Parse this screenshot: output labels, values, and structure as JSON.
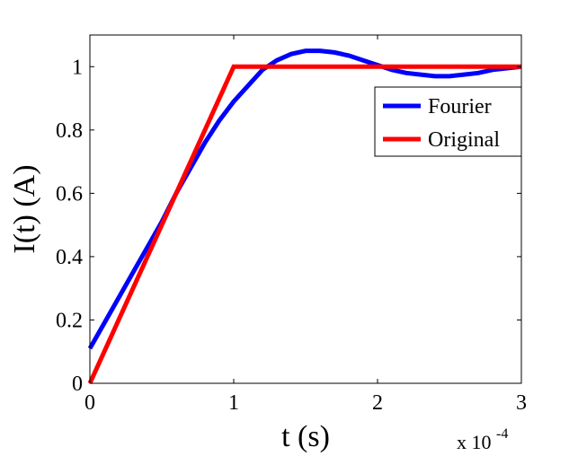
{
  "chart_data": {
    "type": "line",
    "xlabel": "t (s)",
    "ylabel": "I(t) (A)",
    "x_multiplier_label": "x 10",
    "x_multiplier_exponent": "-4",
    "xlim": [
      0,
      3
    ],
    "ylim": [
      0,
      1.1
    ],
    "x_ticks": [
      0,
      1,
      2,
      3
    ],
    "y_ticks": [
      0,
      0.2,
      0.4,
      0.6,
      0.8,
      1
    ],
    "y_tick_labels": [
      "0",
      "0.2",
      "0.4",
      "0.6",
      "0.8",
      "1"
    ],
    "x_tick_labels": [
      "0",
      "1",
      "2",
      "3"
    ],
    "grid": false,
    "legend_position": "top-right",
    "series": [
      {
        "name": "Fourier",
        "color": "#0000ff",
        "x": [
          0,
          0.1,
          0.2,
          0.3,
          0.4,
          0.5,
          0.6,
          0.7,
          0.8,
          0.9,
          1.0,
          1.1,
          1.2,
          1.3,
          1.4,
          1.5,
          1.6,
          1.7,
          1.8,
          1.9,
          2.0,
          2.1,
          2.2,
          2.3,
          2.4,
          2.5,
          2.6,
          2.7,
          2.8,
          2.9,
          3.0
        ],
        "y": [
          0.11,
          0.19,
          0.27,
          0.35,
          0.43,
          0.51,
          0.6,
          0.68,
          0.76,
          0.83,
          0.89,
          0.94,
          0.99,
          1.02,
          1.04,
          1.05,
          1.05,
          1.045,
          1.035,
          1.02,
          1.005,
          0.99,
          0.98,
          0.975,
          0.97,
          0.97,
          0.975,
          0.98,
          0.99,
          0.995,
          1.0
        ]
      },
      {
        "name": "Original",
        "color": "#ff0000",
        "x": [
          0,
          1,
          3
        ],
        "y": [
          0,
          1,
          1
        ]
      }
    ]
  }
}
